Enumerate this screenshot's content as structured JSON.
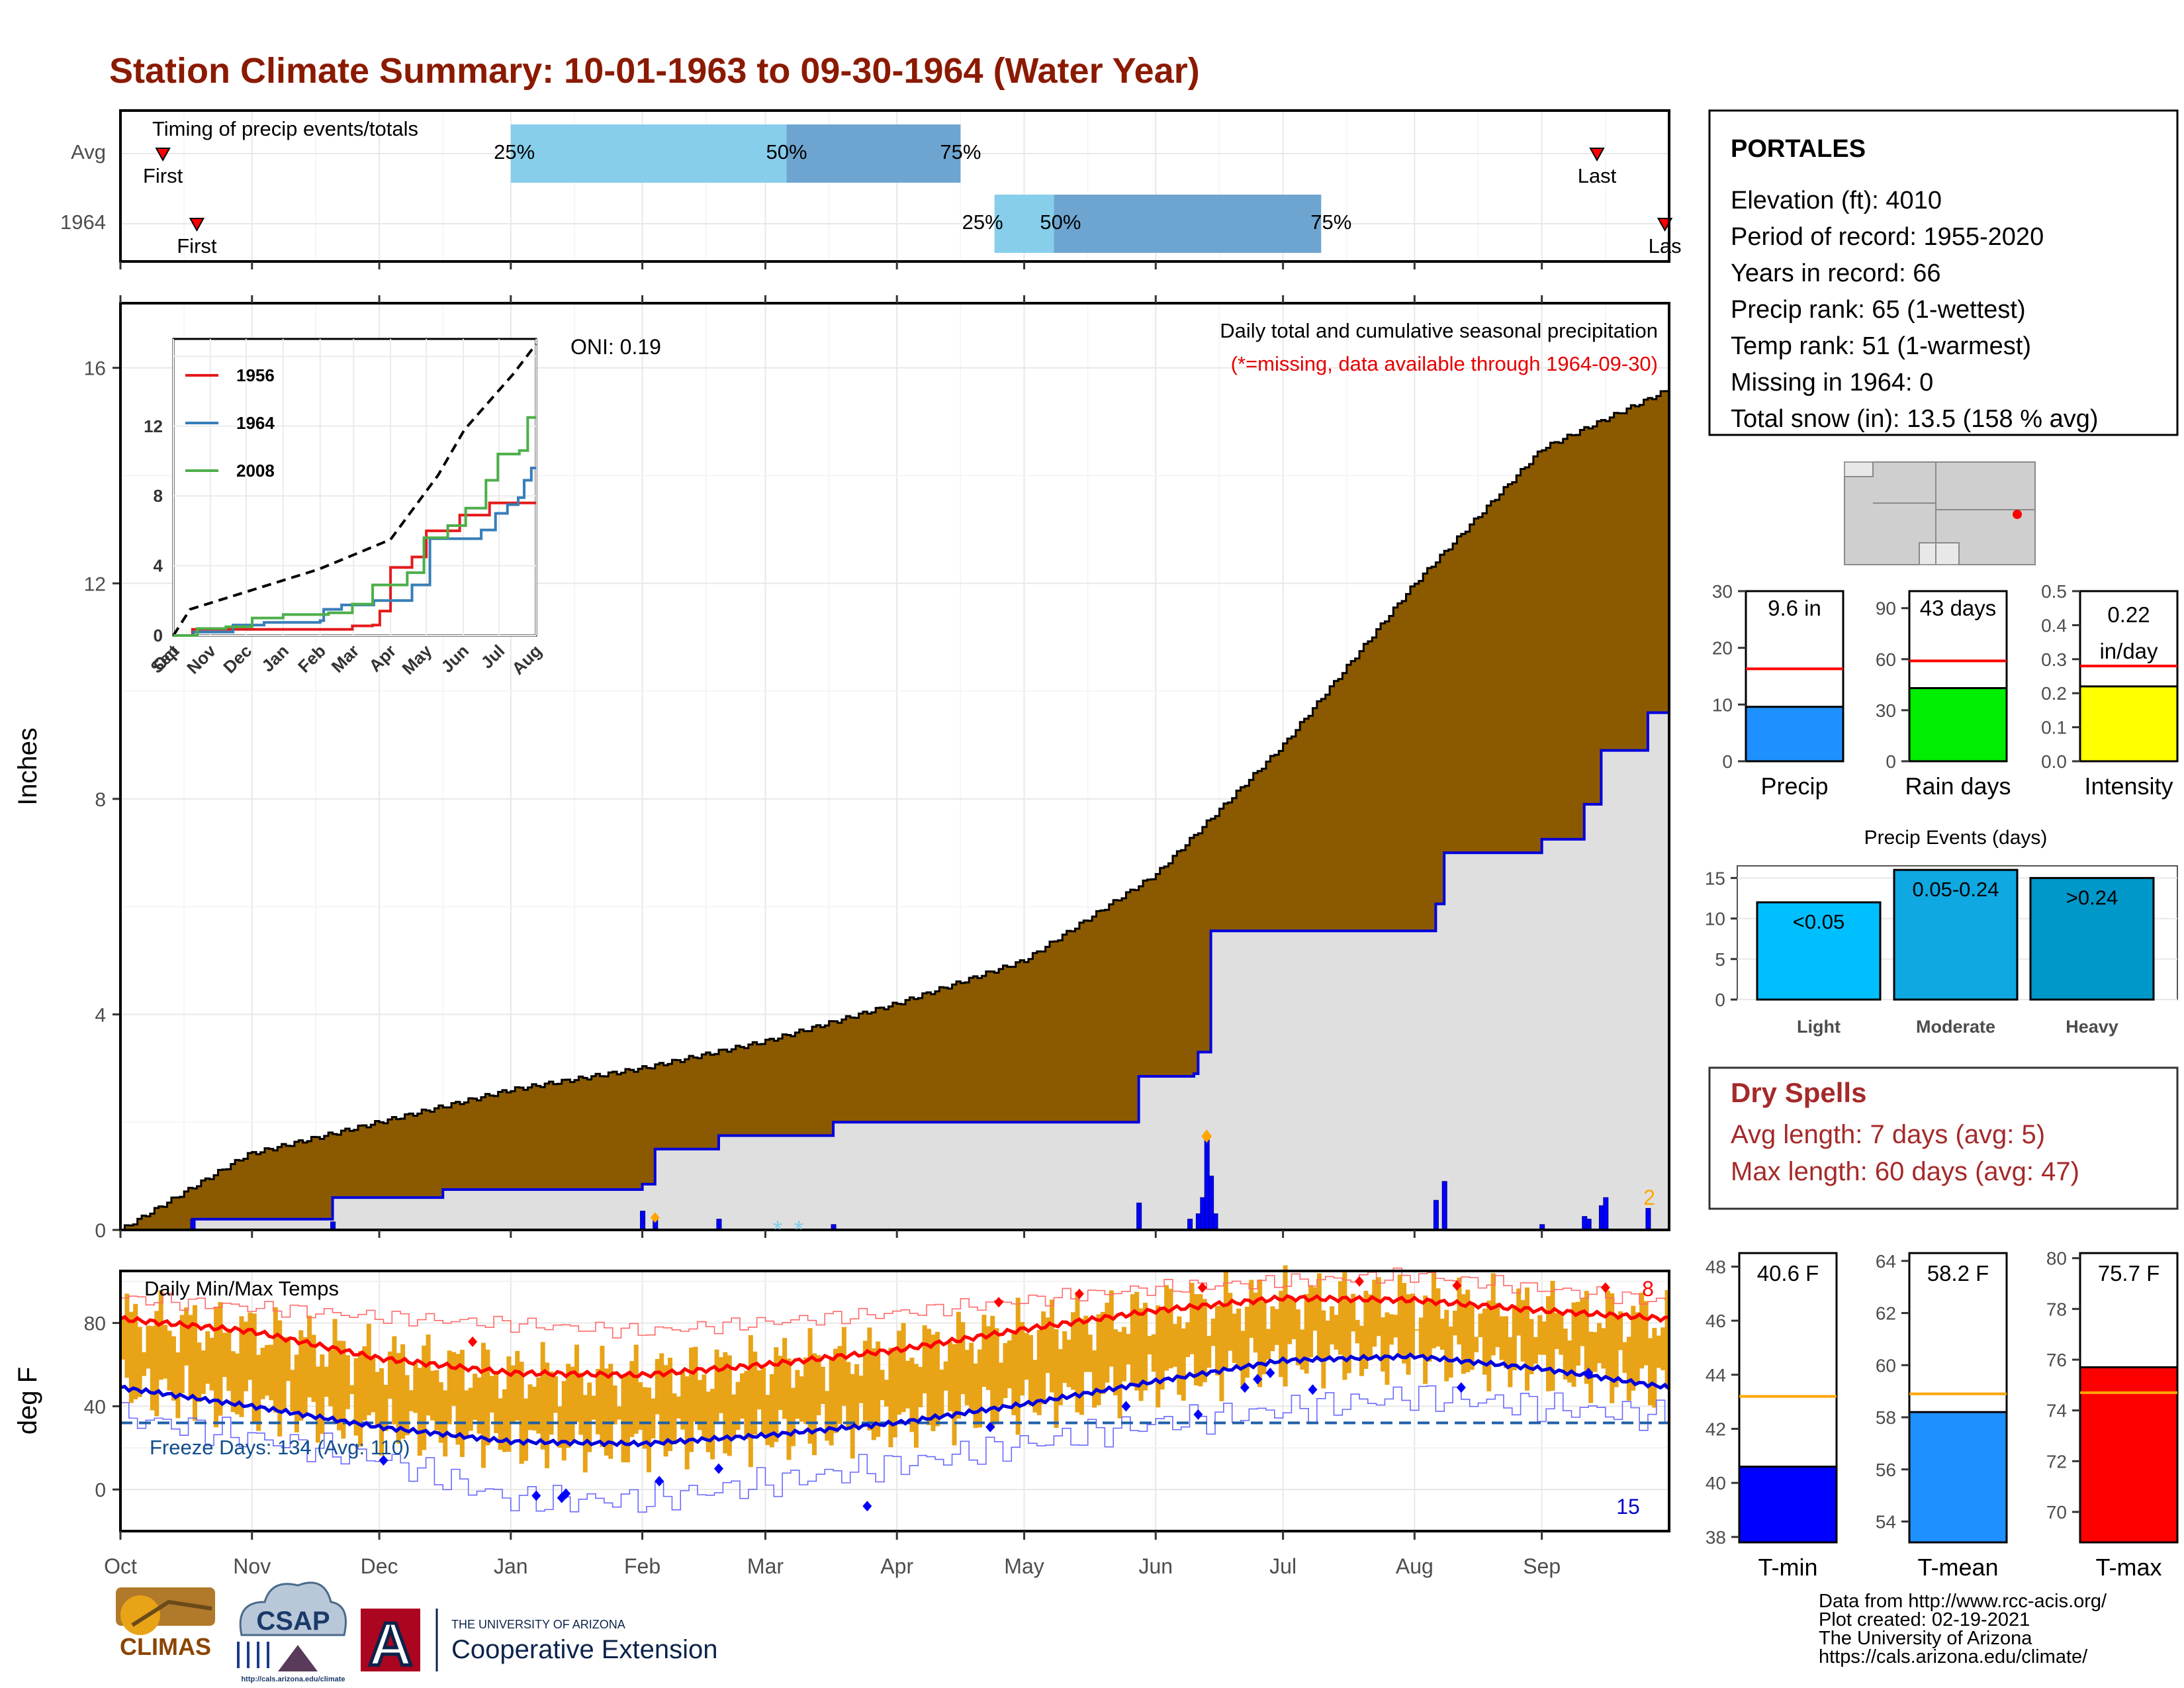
{
  "title": "Station Climate Summary: 10-01-1963 to 09-30-1964 (Water Year)",
  "colors": {
    "title": "#8b1a00",
    "brown": "#8b5a00",
    "blue": "#0000dd",
    "red": "#ff0000",
    "orange": "#e8a317",
    "lightblue": "#87ceeb",
    "midblue": "#6ea5d0",
    "missing": "#e60000",
    "dryspell": "#a52a2a"
  },
  "timing": {
    "label": "Timing of precip events/totals",
    "rows": [
      {
        "label": "Avg",
        "first_label": "First",
        "last_label": "Last",
        "first_day": 10,
        "last_day": 348,
        "p25": 92,
        "p50": 157,
        "p75": 198,
        "p25_label": "25%",
        "p50_label": "50%",
        "p75_label": "75%"
      },
      {
        "label": "1964",
        "first_label": "First",
        "last_label": "Las",
        "first_day": 18,
        "last_day": 364,
        "p25": 206,
        "p50": 220,
        "p75": 283,
        "p25_label": "25%",
        "p50_label": "50%",
        "p75_label": "75%"
      }
    ]
  },
  "precip_panel": {
    "ylabel": "Inches",
    "yticks": [
      "0",
      "4",
      "8",
      "12",
      "16"
    ],
    "header": "Daily total and cumulative seasonal precipitation",
    "missing_note": "(*=missing, data available through 1964-09-30)",
    "oni": "ONI: 0.19",
    "corner_count": "2",
    "missing_markers": [
      "*",
      "*"
    ]
  },
  "inset": {
    "yticks": [
      "0",
      "4",
      "8",
      "12"
    ],
    "xticks": [
      "Oct",
      "Nov",
      "Dec",
      "Jan",
      "Feb",
      "Mar",
      "Apr",
      "May",
      "Jun",
      "Jul",
      "Aug",
      "Sep"
    ],
    "legend": [
      {
        "name": "1956",
        "color": "#e41a1c"
      },
      {
        "name": "1964",
        "color": "#377eb8"
      },
      {
        "name": "2008",
        "color": "#4daf4a"
      }
    ]
  },
  "temp_panel": {
    "ylabel": "deg F",
    "yticks": [
      "0",
      "40",
      "80"
    ],
    "title": "Daily Min/Max Temps",
    "freeze": "Freeze Days: 134 (Avg: 110)",
    "max_count": "8",
    "min_count": "15"
  },
  "months": [
    "Oct",
    "Nov",
    "Dec",
    "Jan",
    "Feb",
    "Mar",
    "Apr",
    "May",
    "Jun",
    "Jul",
    "Aug",
    "Sep"
  ],
  "station": {
    "name": "PORTALES",
    "lines": [
      "Elevation (ft): 4010",
      "Period of record: 1955-2020",
      "Years in record: 66",
      "Precip rank: 65 (1-wettest)",
      "Temp rank: 51 (1-warmest)",
      "Missing in 1964: 0",
      "Total snow (in): 13.5 (158 % avg)"
    ]
  },
  "summary_bars": [
    {
      "label": "Precip",
      "value_label": "9.6 in",
      "value": 9.6,
      "avg": 16.3,
      "yticks": [
        "0",
        "10",
        "20",
        "30"
      ],
      "ymax": 30,
      "color": "#1e90ff"
    },
    {
      "label": "Rain days",
      "value_label": "43 days",
      "value": 43,
      "avg": 59,
      "yticks": [
        "0",
        "30",
        "60",
        "90"
      ],
      "ymax": 100,
      "color": "#00ee00"
    },
    {
      "label": "Intensity",
      "value_label": "0.22",
      "value_label2": "in/day",
      "value": 0.22,
      "avg": 0.28,
      "yticks": [
        "0.0",
        "0.1",
        "0.2",
        "0.3",
        "0.4",
        "0.5"
      ],
      "ymax": 0.5,
      "color": "#ffff00"
    }
  ],
  "events": {
    "title": "Precip Events (days)",
    "yticks": [
      "0",
      "5",
      "10",
      "15"
    ],
    "bars": [
      {
        "cat": "Light",
        "label": "<0.05",
        "value": 12,
        "color": "#00bfff"
      },
      {
        "cat": "Moderate",
        "label": "0.05-0.24",
        "value": 16,
        "color": "#0fa8e0"
      },
      {
        "cat": "Heavy",
        "label": ">0.24",
        "value": 15,
        "color": "#0097c9"
      }
    ]
  },
  "dry_spells": {
    "title": "Dry Spells",
    "lines": [
      "Avg length: 7 days (avg: 5)",
      "Max length: 60 days (avg: 47)"
    ]
  },
  "temp_bars": [
    {
      "label": "T-min",
      "value_label": "40.6 F",
      "value": 40.6,
      "avg": 43.2,
      "ymin": 37.8,
      "ymax": 48.5,
      "yticks": [
        "38",
        "40",
        "42",
        "44",
        "46",
        "48"
      ],
      "color": "#0000ff"
    },
    {
      "label": "T-mean",
      "value_label": "58.2 F",
      "value": 58.2,
      "avg": 58.9,
      "ymin": 53.2,
      "ymax": 64.3,
      "yticks": [
        "54",
        "56",
        "58",
        "60",
        "62",
        "64"
      ],
      "color": "#1e90ff"
    },
    {
      "label": "T-max",
      "value_label": "75.7 F",
      "value": 75.7,
      "avg": 74.7,
      "ymin": 68.8,
      "ymax": 80.2,
      "yticks": [
        "70",
        "72",
        "74",
        "76",
        "78",
        "80"
      ],
      "color": "#ff0000"
    }
  ],
  "footer": {
    "lines": [
      "Data from http://www.rcc-acis.org/",
      "Plot created: 02-19-2021",
      "The University of Arizona",
      "https://cals.arizona.edu/climate/"
    ]
  },
  "logos": {
    "climas": "CLIMAS",
    "csap": "CSAP",
    "csap_url": "http://cals.arizona.edu/climate",
    "ua_small": "THE UNIVERSITY OF ARIZONA",
    "ua_big": "Cooperative Extension",
    "ua_letter": "A"
  },
  "chart_data": [
    {
      "type": "area",
      "title": "Daily total and cumulative seasonal precipitation",
      "ylabel": "Inches",
      "ylim": [
        0,
        17.2
      ],
      "x_range_days": [
        0,
        365
      ],
      "series": [
        {
          "name": "cumulative average",
          "points": [
            [
              0,
              0
            ],
            [
              30,
              1.4
            ],
            [
              61,
              2.0
            ],
            [
              92,
              2.6
            ],
            [
              123,
              3.0
            ],
            [
              152,
              3.5
            ],
            [
              183,
              4.2
            ],
            [
              213,
              5.0
            ],
            [
              244,
              6.6
            ],
            [
              274,
              9.0
            ],
            [
              305,
              12.0
            ],
            [
              335,
              14.5
            ],
            [
              365,
              15.6
            ]
          ]
        },
        {
          "name": "1964",
          "points": [
            [
              0,
              0
            ],
            [
              17,
              0.2
            ],
            [
              31,
              0.2
            ],
            [
              50,
              0.6
            ],
            [
              76,
              0.75
            ],
            [
              123,
              0.85
            ],
            [
              126,
              1.5
            ],
            [
              141,
              1.75
            ],
            [
              168,
              2.0
            ],
            [
              237,
              2.0
            ],
            [
              240,
              2.85
            ],
            [
              253,
              2.9
            ],
            [
              254,
              3.3
            ],
            [
              257,
              5.55
            ],
            [
              310,
              6.05
            ],
            [
              312,
              7.0
            ],
            [
              335,
              7.25
            ],
            [
              345,
              7.9
            ],
            [
              349,
              8.9
            ],
            [
              360,
              9.6
            ],
            [
              365,
              9.6
            ]
          ]
        },
        {
          "name": "daily",
          "points": [
            [
              17,
              0.2
            ],
            [
              50,
              0.15
            ],
            [
              123,
              0.35
            ],
            [
              126,
              0.2
            ],
            [
              141,
              0.2
            ],
            [
              168,
              0.1
            ],
            [
              240,
              0.5
            ],
            [
              252,
              0.2
            ],
            [
              254,
              0.3
            ],
            [
              255,
              0.6
            ],
            [
              256,
              1.7
            ],
            [
              257,
              1.0
            ],
            [
              258,
              0.3
            ],
            [
              310,
              0.55
            ],
            [
              312,
              0.9
            ],
            [
              335,
              0.1
            ],
            [
              345,
              0.25
            ],
            [
              346,
              0.2
            ],
            [
              349,
              0.45
            ],
            [
              350,
              0.6
            ],
            [
              360,
              0.4
            ]
          ]
        }
      ]
    },
    {
      "type": "line",
      "ylim": [
        0,
        17
      ],
      "series": [
        {
          "name": "average",
          "points": [
            [
              0,
              0
            ],
            [
              14,
              1.5
            ],
            [
              61,
              2.5
            ],
            [
              122,
              3.8
            ],
            [
              182,
              5.5
            ],
            [
              222,
              9.2
            ],
            [
              244,
              11.8
            ],
            [
              285,
              15.0
            ],
            [
              304,
              16.7
            ]
          ]
        },
        {
          "name": "1956",
          "points": [
            [
              0,
              0
            ],
            [
              16,
              0.35
            ],
            [
              50,
              0.35
            ],
            [
              150,
              0.55
            ],
            [
              167,
              0.6
            ],
            [
              173,
              1.4
            ],
            [
              182,
              3.9
            ],
            [
              200,
              4.5
            ],
            [
              212,
              6.0
            ],
            [
              240,
              6.9
            ],
            [
              265,
              7.6
            ],
            [
              304,
              7.6
            ]
          ]
        },
        {
          "name": "1964",
          "points": [
            [
              0,
              0
            ],
            [
              17,
              0.2
            ],
            [
              50,
              0.6
            ],
            [
              76,
              0.75
            ],
            [
              123,
              0.85
            ],
            [
              126,
              1.5
            ],
            [
              141,
              1.75
            ],
            [
              168,
              2.0
            ],
            [
              182,
              2.0
            ],
            [
              200,
              2.9
            ],
            [
              215,
              5.55
            ],
            [
              258,
              6.05
            ],
            [
              270,
              7.0
            ],
            [
              280,
              7.5
            ],
            [
              289,
              7.9
            ],
            [
              294,
              8.9
            ],
            [
              300,
              9.6
            ],
            [
              304,
              9.6
            ]
          ]
        },
        {
          "name": "2008",
          "points": [
            [
              0,
              0
            ],
            [
              20,
              0.4
            ],
            [
              44,
              0.5
            ],
            [
              66,
              1.0
            ],
            [
              92,
              1.2
            ],
            [
              130,
              1.3
            ],
            [
              150,
              1.8
            ],
            [
              167,
              2.9
            ],
            [
              196,
              3.6
            ],
            [
              210,
              5.6
            ],
            [
              230,
              6.3
            ],
            [
              245,
              7.3
            ],
            [
              262,
              8.9
            ],
            [
              272,
              10.4
            ],
            [
              290,
              10.6
            ],
            [
              297,
              12.5
            ],
            [
              304,
              12.5
            ]
          ]
        }
      ]
    },
    {
      "type": "line",
      "title": "Daily Min/Max Temps",
      "ylabel": "deg F",
      "ylim": [
        -20,
        105
      ],
      "series": [
        {
          "name": "avg max",
          "points": [
            [
              0,
              82
            ],
            [
              31,
              76
            ],
            [
              61,
              63
            ],
            [
              92,
              56
            ],
            [
              123,
              55
            ],
            [
              152,
              60
            ],
            [
              183,
              67
            ],
            [
              213,
              77
            ],
            [
              244,
              86
            ],
            [
              274,
              92
            ],
            [
              305,
              91
            ],
            [
              335,
              86
            ],
            [
              365,
              82
            ]
          ]
        },
        {
          "name": "avg min",
          "points": [
            [
              0,
              49
            ],
            [
              31,
              40
            ],
            [
              61,
              30
            ],
            [
              92,
              23
            ],
            [
              123,
              22
            ],
            [
              152,
              26
            ],
            [
              183,
              32
            ],
            [
              213,
              41
            ],
            [
              244,
              52
            ],
            [
              274,
              62
            ],
            [
              305,
              64
            ],
            [
              335,
              58
            ],
            [
              365,
              49
            ]
          ]
        },
        {
          "name": "record max",
          "points": [
            [
              0,
              92
            ],
            [
              61,
              83
            ],
            [
              123,
              76
            ],
            [
              183,
              85
            ],
            [
              244,
              97
            ],
            [
              305,
              103
            ],
            [
              365,
              90
            ]
          ]
        },
        {
          "name": "record min",
          "points": [
            [
              0,
              35
            ],
            [
              61,
              15
            ],
            [
              92,
              -5
            ],
            [
              123,
              -5
            ],
            [
              183,
              12
            ],
            [
              244,
              32
            ],
            [
              305,
              45
            ],
            [
              365,
              35
            ]
          ]
        },
        {
          "name": "freeze line",
          "points": [
            [
              0,
              32
            ],
            [
              365,
              32
            ]
          ]
        }
      ]
    }
  ]
}
